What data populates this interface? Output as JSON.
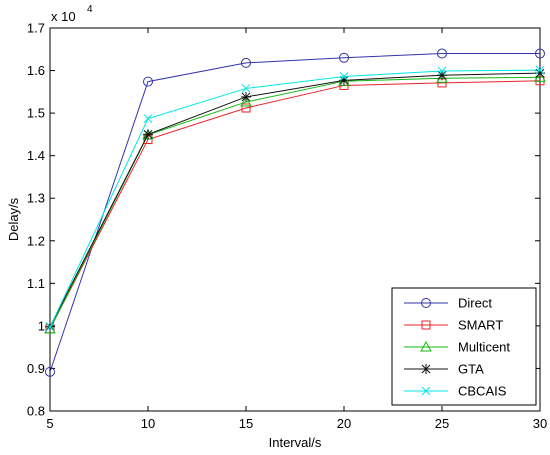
{
  "chart_data": {
    "type": "line",
    "title": "",
    "xlabel": "Interval/s",
    "ylabel": "Delay/s",
    "y_exponent_label": "x 10",
    "y_exponent_power": "4",
    "xlim": [
      5,
      30
    ],
    "ylim": [
      0.8,
      1.7
    ],
    "x_ticks": [
      5,
      10,
      15,
      20,
      25,
      30
    ],
    "y_ticks": [
      0.8,
      0.9,
      1,
      1.1,
      1.2,
      1.3,
      1.4,
      1.5,
      1.6,
      1.7
    ],
    "y_tick_labels": [
      "0.8",
      "0.9",
      "1",
      "1.1",
      "1.2",
      "1.3",
      "1.4",
      "1.5",
      "1.6",
      "1.7"
    ],
    "x_tick_labels": [
      "5",
      "10",
      "15",
      "20",
      "25",
      "30"
    ],
    "grid": false,
    "legend_position": "bottom-right",
    "x": [
      5,
      10,
      15,
      20,
      25,
      30
    ],
    "series": [
      {
        "name": "Direct",
        "color": "#3333aa",
        "marker": "circle",
        "values": [
          0.892,
          1.574,
          1.618,
          1.63,
          1.64,
          1.64
        ]
      },
      {
        "name": "SMART",
        "color": "#e8232a",
        "marker": "square",
        "values": [
          0.993,
          1.438,
          1.512,
          1.565,
          1.571,
          1.576
        ]
      },
      {
        "name": "Multicent",
        "color": "#11b811",
        "marker": "triangle",
        "values": [
          0.993,
          1.449,
          1.526,
          1.575,
          1.582,
          1.584
        ]
      },
      {
        "name": "GTA",
        "color": "#111111",
        "marker": "star",
        "values": [
          0.998,
          1.45,
          1.538,
          1.577,
          1.589,
          1.594
        ]
      },
      {
        "name": "CBCAIS",
        "color": "#00e6e6",
        "marker": "x",
        "values": [
          0.997,
          1.487,
          1.558,
          1.586,
          1.599,
          1.601
        ]
      }
    ]
  }
}
